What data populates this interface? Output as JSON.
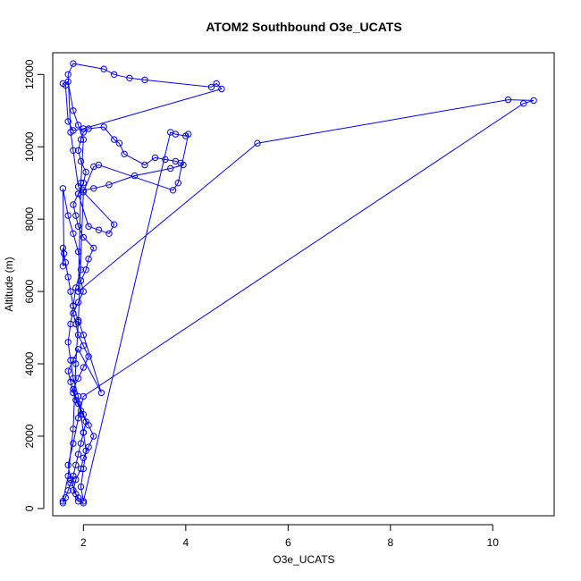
{
  "chart_data": {
    "type": "line",
    "title": "ATOM2 Southbound O3e_UCATS",
    "xlabel": "O3e_UCATS",
    "ylabel": "Altitude (m)",
    "xlim": [
      1.4,
      11.2
    ],
    "ylim": [
      -200,
      12600
    ],
    "x_ticks": [
      2,
      4,
      6,
      8,
      10
    ],
    "x_tick_labels": [
      "2",
      "4",
      "6",
      "8",
      "10"
    ],
    "y_ticks": [
      0,
      2000,
      4000,
      6000,
      8000,
      10000,
      12000
    ],
    "y_tick_labels": [
      "0",
      "2000",
      "4000",
      "6000",
      "8000",
      "10000",
      "12000"
    ],
    "grid": false,
    "series_color": "#0000ff",
    "marker": "open-circle",
    "series": [
      {
        "x": [
          1.6,
          1.65,
          1.7,
          1.75,
          1.8,
          1.85,
          1.9,
          1.95,
          2.0,
          2.05,
          1.95,
          1.85,
          1.8,
          1.9,
          2.0,
          2.1,
          2.0,
          1.9,
          1.85,
          1.8,
          1.9,
          2.0,
          1.95,
          2.05,
          2.1,
          2.2,
          2.0,
          1.9,
          1.85,
          1.8,
          1.9,
          2.0,
          2.05,
          1.95,
          1.9,
          1.95,
          2.0,
          2.1,
          2.4,
          2.6,
          2.7,
          2.8,
          3.2,
          3.4,
          3.6,
          3.8,
          3.9,
          3.95,
          3.7,
          3.0,
          2.5,
          2.2,
          2.0,
          1.9,
          2.1,
          2.3,
          2.5,
          2.6,
          1.9,
          1.8,
          1.75,
          1.7,
          1.8,
          2.4,
          2.6,
          2.9,
          3.2,
          4.5,
          4.6,
          4.7,
          2.0,
          1.8,
          1.7,
          1.65,
          1.6,
          1.7,
          1.8,
          1.9,
          2.0,
          1.95,
          1.9,
          5.4,
          10.3,
          10.8,
          10.6,
          2.0,
          1.9,
          1.8,
          1.7,
          1.75,
          1.85,
          1.9,
          2.0,
          1.9,
          1.8,
          1.85,
          1.95,
          2.0,
          2.1,
          2.2,
          2.1,
          2.0,
          1.9,
          1.8,
          1.75,
          1.7,
          1.8,
          1.9,
          2.35,
          2.0,
          1.9,
          1.8,
          1.75,
          1.7,
          1.65,
          1.6,
          1.6,
          1.62,
          1.6,
          1.7,
          1.8,
          1.9,
          1.95,
          1.85,
          1.8,
          1.75,
          1.7,
          1.75,
          1.8,
          1.9,
          1.95,
          2.0,
          2.05,
          2.0,
          1.95,
          2.0,
          3.7,
          3.8,
          4.0,
          4.05,
          3.85,
          3.75,
          2.3,
          2.2,
          2.0,
          1.9,
          1.85,
          1.8,
          1.7,
          1.6
        ],
        "y": [
          150,
          300,
          500,
          700,
          900,
          1200,
          1500,
          1800,
          2100,
          2400,
          2700,
          3000,
          3300,
          3600,
          3900,
          4200,
          4500,
          4800,
          5100,
          5400,
          5700,
          6000,
          6300,
          6600,
          6900,
          7200,
          7500,
          7800,
          8100,
          8400,
          8700,
          9000,
          9300,
          9600,
          9900,
          10200,
          10400,
          10500,
          10550,
          10200,
          10100,
          9800,
          9500,
          9700,
          9650,
          9600,
          9550,
          9500,
          9400,
          9200,
          8950,
          8850,
          8800,
          8700,
          7800,
          7700,
          7600,
          7850,
          8900,
          9900,
          10400,
          12000,
          12300,
          12150,
          12000,
          11900,
          11850,
          11650,
          11750,
          11600,
          10500,
          10450,
          10700,
          11700,
          11750,
          11800,
          11000,
          10600,
          10200,
          9000,
          6000,
          10100,
          11300,
          11280,
          11200,
          3100,
          2500,
          1800,
          1200,
          800,
          400,
          200,
          150,
          300,
          500,
          800,
          1100,
          1400,
          1700,
          2000,
          2300,
          2600,
          2900,
          3200,
          3500,
          3800,
          4100,
          4400,
          3200,
          4800,
          5200,
          5600,
          6000,
          6400,
          6800,
          7200,
          6700,
          7050,
          8850,
          8100,
          7600,
          7100,
          6600,
          6100,
          5600,
          5100,
          4600,
          4100,
          3600,
          3100,
          2600,
          2100,
          1600,
          1100,
          600,
          200,
          10400,
          10350,
          10300,
          10350,
          9000,
          8800,
          9500,
          9450,
          8750,
          5150,
          4000,
          2200,
          900,
          200
        ]
      }
    ]
  }
}
